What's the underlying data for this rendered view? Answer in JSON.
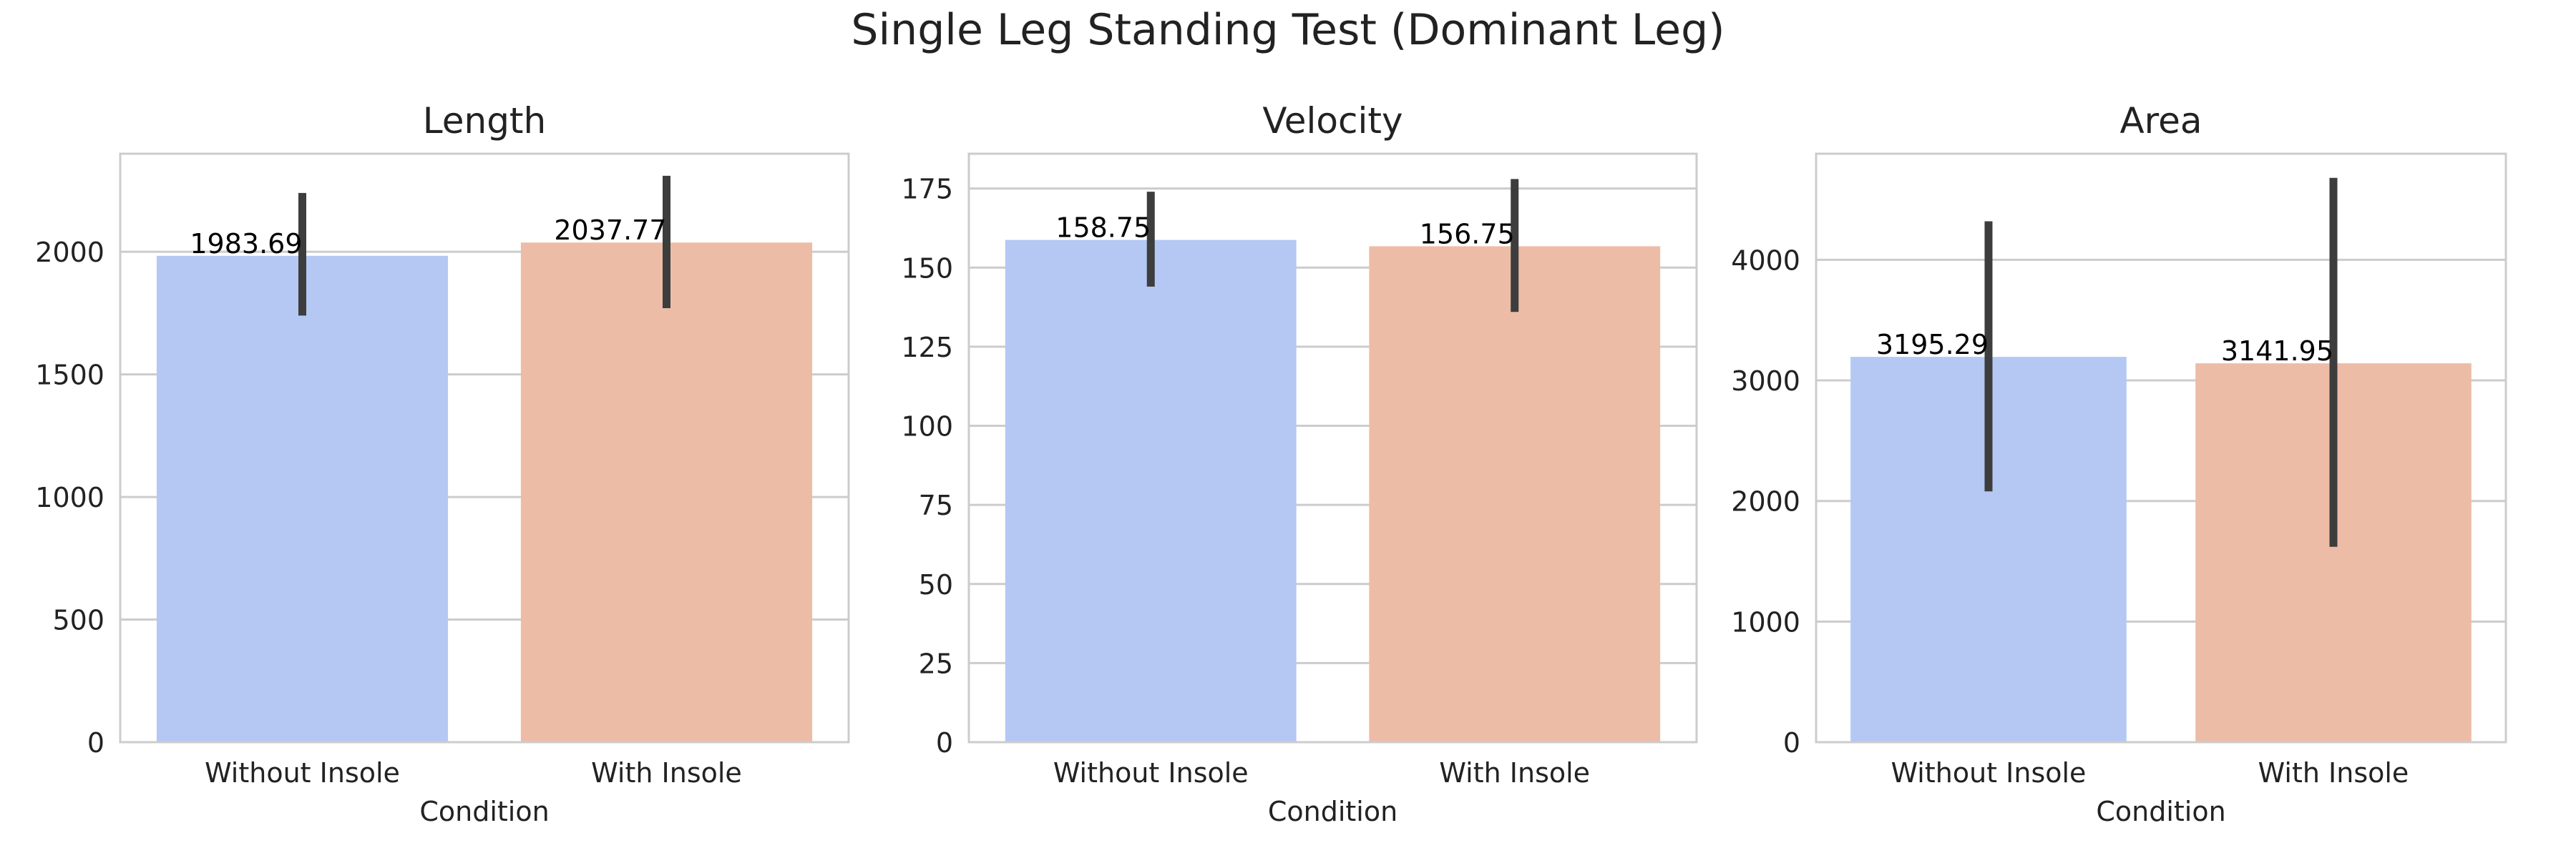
{
  "figure": {
    "suptitle": "Single Leg Standing Test (Dominant Leg)"
  },
  "colors": {
    "without_insole": "#b4c8f3",
    "with_insole": "#edbca7",
    "error_bar": "#3d3d3d",
    "grid": "#cccccc",
    "spine": "#cccccc",
    "text": "#222222",
    "bar_label": "#000000"
  },
  "chart_data": [
    {
      "type": "bar",
      "title": "Length",
      "xlabel": "Condition",
      "ylabel": "",
      "categories": [
        "Without Insole",
        "With Insole"
      ],
      "values": [
        1983.69,
        2037.77
      ],
      "value_labels": [
        "1983.69",
        "2037.77"
      ],
      "error_low": [
        1740,
        1770
      ],
      "error_high": [
        2240,
        2310
      ],
      "ylim": [
        0,
        2400
      ],
      "yticks": [
        0,
        500,
        1000,
        1500,
        2000
      ],
      "grid": true
    },
    {
      "type": "bar",
      "title": "Velocity",
      "xlabel": "Condition",
      "ylabel": "",
      "categories": [
        "Without Insole",
        "With Insole"
      ],
      "values": [
        158.75,
        156.75
      ],
      "value_labels": [
        "158.75",
        "156.75"
      ],
      "error_low": [
        144,
        136
      ],
      "error_high": [
        174,
        178
      ],
      "ylim": [
        0,
        186
      ],
      "yticks": [
        0,
        25,
        50,
        75,
        100,
        125,
        150,
        175
      ],
      "grid": true
    },
    {
      "type": "bar",
      "title": "Area",
      "xlabel": "Condition",
      "ylabel": "",
      "categories": [
        "Without Insole",
        "With Insole"
      ],
      "values": [
        3195.29,
        3141.95
      ],
      "value_labels": [
        "3195.29",
        "3141.95"
      ],
      "error_low": [
        2080,
        1620
      ],
      "error_high": [
        4320,
        4680
      ],
      "ylim": [
        0,
        4880
      ],
      "yticks": [
        0,
        1000,
        2000,
        3000,
        4000
      ],
      "grid": true
    }
  ]
}
